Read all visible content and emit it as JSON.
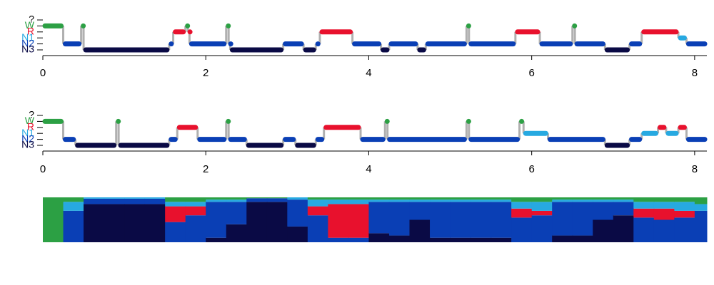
{
  "chart_data": [
    {
      "type": "hypnogram",
      "x": [
        0,
        0.25,
        0.47,
        0.5,
        1.55,
        1.6,
        1.75,
        1.78,
        1.8,
        2.25,
        2.28,
        2.3,
        2.95,
        3.2,
        3.35,
        3.4,
        3.8,
        4.15,
        4.25,
        4.6,
        4.7,
        5.2,
        5.23,
        5.8,
        6.1,
        6.5,
        6.53,
        6.9,
        7.2,
        7.35,
        7.8,
        7.9
      ],
      "values": [
        4,
        1,
        4,
        0,
        1,
        3,
        4,
        3,
        1,
        4,
        1,
        0,
        1,
        0,
        1,
        3,
        1,
        0,
        1,
        0,
        1,
        4,
        1,
        3,
        1,
        4,
        1,
        0,
        1,
        3,
        2,
        1
      ],
      "xlim": [
        0,
        8.15
      ],
      "xticks": [
        0,
        2,
        4,
        6,
        8
      ],
      "ylim": [
        0,
        5
      ],
      "yticks": [
        {
          "value": 5,
          "label": "?"
        },
        {
          "value": 4,
          "label": "W"
        },
        {
          "value": 3,
          "label": "R"
        },
        {
          "value": 2,
          "label": "N1"
        },
        {
          "value": 1,
          "label": "N2"
        },
        {
          "value": 0,
          "label": "N3"
        }
      ],
      "colors": [
        "#000000",
        "#2ca044",
        "#e8112d",
        "#27a9e1",
        "#0a3fb5",
        "#0a0a45"
      ]
    },
    {
      "type": "hypnogram",
      "x": [
        0,
        0.25,
        0.4,
        0.9,
        0.93,
        1.55,
        1.65,
        1.9,
        2.25,
        2.28,
        2.5,
        2.95,
        3.1,
        3.35,
        3.45,
        3.9,
        4.2,
        4.23,
        5.2,
        5.23,
        5.85,
        5.9,
        6.2,
        6.9,
        7.2,
        7.35,
        7.55,
        7.65,
        7.8,
        7.9
      ],
      "values": [
        4,
        1,
        0,
        4,
        0,
        1,
        3,
        1,
        4,
        1,
        0,
        1,
        0,
        1,
        3,
        1,
        4,
        1,
        4,
        1,
        4,
        2,
        1,
        0,
        1,
        2,
        3,
        2,
        3,
        1
      ],
      "xlim": [
        0,
        8.15
      ],
      "xticks": [
        0,
        2,
        4,
        6,
        8
      ],
      "ylim": [
        0,
        5
      ],
      "yticks": [
        {
          "value": 5,
          "label": "?"
        },
        {
          "value": 4,
          "label": "W"
        },
        {
          "value": 3,
          "label": "R"
        },
        {
          "value": 2,
          "label": "N1"
        },
        {
          "value": 1,
          "label": "N2"
        },
        {
          "value": 0,
          "label": "N3"
        }
      ],
      "colors": [
        "#000000",
        "#2ca044",
        "#e8112d",
        "#27a9e1",
        "#0a3fb5",
        "#0a0a45"
      ]
    },
    {
      "type": "hypnodensity",
      "x": [
        0,
        0.25,
        0.5,
        0.75,
        1,
        1.25,
        1.5,
        1.75,
        2,
        2.25,
        2.5,
        2.75,
        3,
        3.25,
        3.5,
        3.75,
        4,
        4.25,
        4.5,
        4.75,
        5,
        5.25,
        5.5,
        5.75,
        6,
        6.25,
        6.5,
        6.75,
        7,
        7.25,
        7.5,
        7.75,
        8
      ],
      "xlim": [
        0,
        8.15
      ],
      "ylim": [
        0,
        1
      ],
      "series": [
        {
          "color": "#0a0a45",
          "values": [
            0,
            0,
            0.85,
            0.85,
            0.85,
            0.85,
            0,
            0,
            0.1,
            0.4,
            0.9,
            0.9,
            0.35,
            0,
            0,
            0,
            0.2,
            0.15,
            0.5,
            0.1,
            0.1,
            0.1,
            0.1,
            0,
            0,
            0.15,
            0.15,
            0.5,
            0.6,
            0,
            0,
            0,
            0
          ]
        },
        {
          "color": "#0a3fb5",
          "values": [
            0,
            0.7,
            0.12,
            0.12,
            0.12,
            0.12,
            0.45,
            0.6,
            0.8,
            0.5,
            0.08,
            0.08,
            0.6,
            0.6,
            0.1,
            0.1,
            0.7,
            0.75,
            0.4,
            0.8,
            0.8,
            0.8,
            0.8,
            0.55,
            0.6,
            0.75,
            0.75,
            0.4,
            0.3,
            0.55,
            0.5,
            0.55,
            0.7
          ]
        },
        {
          "color": "#e8112d",
          "values": [
            0,
            0,
            0,
            0,
            0,
            0,
            0.35,
            0.2,
            0,
            0,
            0,
            0,
            0,
            0.2,
            0.75,
            0.75,
            0,
            0,
            0,
            0,
            0,
            0,
            0,
            0.2,
            0.1,
            0,
            0,
            0,
            0,
            0.2,
            0.25,
            0.15,
            0
          ]
        },
        {
          "color": "#27a9e1",
          "values": [
            0,
            0.2,
            0.03,
            0.03,
            0.03,
            0.03,
            0.1,
            0.1,
            0.05,
            0.05,
            0,
            0,
            0.05,
            0.15,
            0.1,
            0.1,
            0.05,
            0.05,
            0.05,
            0.05,
            0.05,
            0.05,
            0.05,
            0.15,
            0.2,
            0.05,
            0.05,
            0.05,
            0.05,
            0.15,
            0.15,
            0.2,
            0.15
          ]
        },
        {
          "color": "#2ca044",
          "values": [
            1,
            0.1,
            0,
            0,
            0,
            0,
            0.1,
            0.1,
            0.05,
            0.05,
            0.02,
            0.02,
            0,
            0.05,
            0.05,
            0.05,
            0.05,
            0.05,
            0.05,
            0.05,
            0.05,
            0.05,
            0.05,
            0.1,
            0.1,
            0.05,
            0.05,
            0.05,
            0.05,
            0.1,
            0.1,
            0.1,
            0.15
          ]
        }
      ]
    }
  ]
}
